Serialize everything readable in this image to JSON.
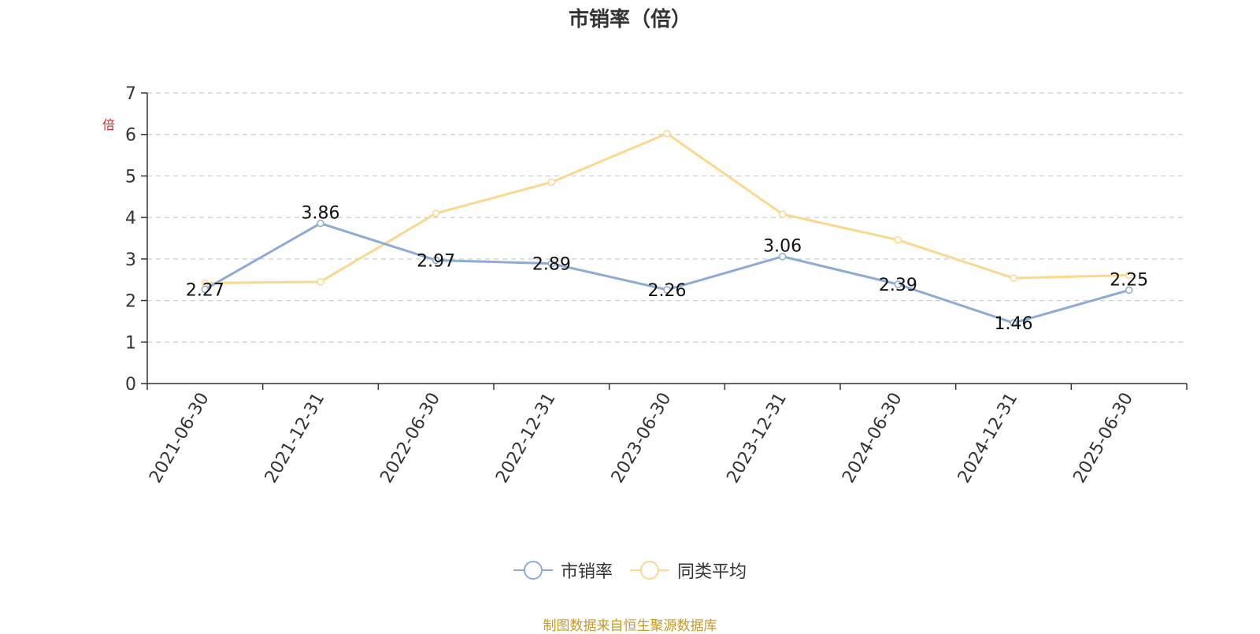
{
  "chart_data": {
    "type": "line",
    "title": "市销率（倍）",
    "ylabel": "倍",
    "xlabel": "",
    "categories": [
      "2021-06-30",
      "2021-12-31",
      "2022-06-30",
      "2022-12-31",
      "2023-06-30",
      "2023-12-31",
      "2024-06-30",
      "2024-12-31",
      "2025-06-30"
    ],
    "ylim": [
      0,
      7
    ],
    "yticks": [
      0,
      1,
      2,
      3,
      4,
      5,
      6,
      7
    ],
    "grid": true,
    "legend_position": "bottom",
    "series": [
      {
        "name": "市销率",
        "color": "#8eaad6",
        "values": [
          2.27,
          3.86,
          2.97,
          2.89,
          2.26,
          3.06,
          2.39,
          1.46,
          2.25
        ],
        "show_labels": true
      },
      {
        "name": "同类平均",
        "color": "#fbd88e",
        "values": [
          2.42,
          2.45,
          4.1,
          4.85,
          6.02,
          4.08,
          3.46,
          2.54,
          2.61
        ],
        "show_labels": false
      }
    ]
  },
  "source_text": "制图数据来自恒生聚源数据库"
}
